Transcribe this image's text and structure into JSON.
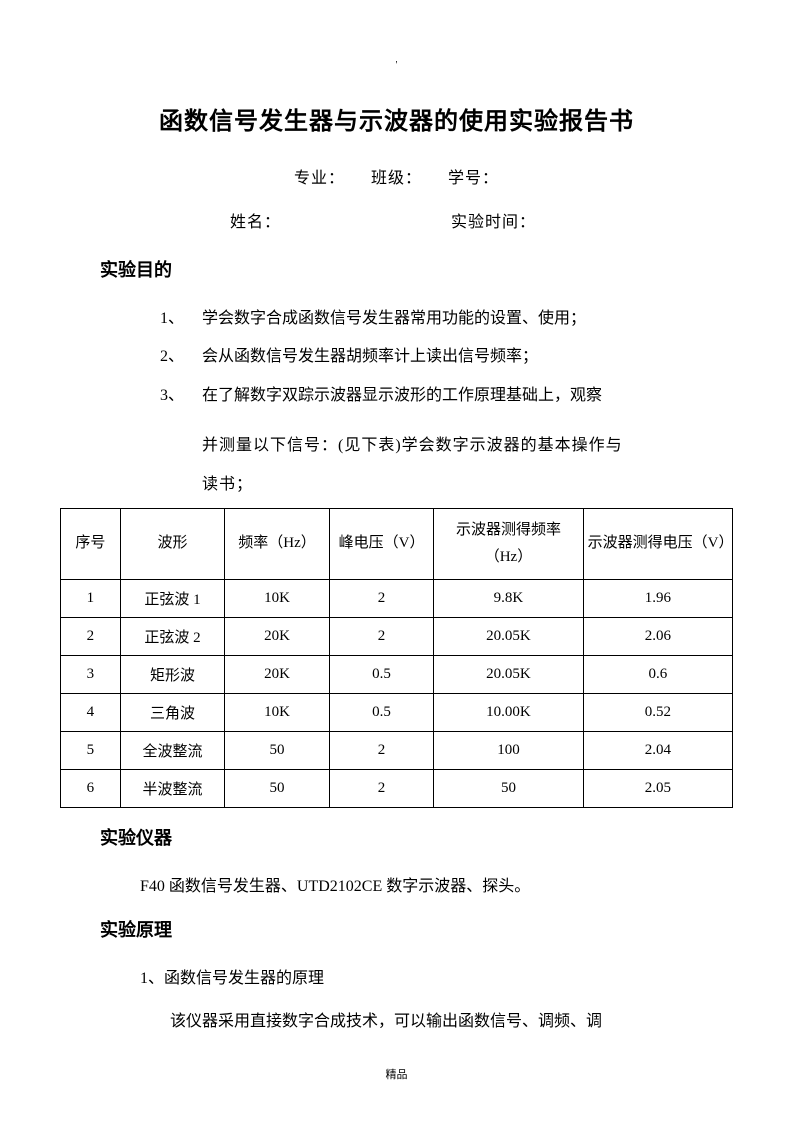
{
  "topDot": "'",
  "title": "函数信号发生器与示波器的使用实验报告书",
  "info": {
    "line1": "专业：　　班级：　　学号：",
    "name_label": "姓名：",
    "time_label": "实验时间："
  },
  "sections": {
    "purpose_heading": "实验目的",
    "instruments_heading": "实验仪器",
    "principle_heading": "实验原理"
  },
  "purpose_items": [
    {
      "num": "1、",
      "text": "学会数字合成函数信号发生器常用功能的设置、使用；"
    },
    {
      "num": "2、",
      "text": " 会从函数信号发生器胡频率计上读出信号频率；"
    },
    {
      "num": "3、",
      "text": "在了解数字双踪示波器显示波形的工作原理基础上，观察"
    }
  ],
  "purpose_cont1": "并测量以下信号：(见下表)学会数字示波器的基本操作与",
  "purpose_cont2": "读书；",
  "table": {
    "columns": [
      "序号",
      "波形",
      "频率（Hz）",
      "峰电压（V）",
      "示波器测得频率（Hz）",
      "示波器测得电压（V）"
    ],
    "rows": [
      [
        "1",
        "正弦波 1",
        "10K",
        "2",
        "9.8K",
        "1.96"
      ],
      [
        "2",
        "正弦波 2",
        "20K",
        "2",
        "20.05K",
        "2.06"
      ],
      [
        "3",
        "矩形波",
        "20K",
        "0.5",
        "20.05K",
        "0.6"
      ],
      [
        "4",
        "三角波",
        "10K",
        "0.5",
        "10.00K",
        "0.52"
      ],
      [
        "5",
        "全波整流",
        "50",
        "2",
        "100",
        "2.04"
      ],
      [
        "6",
        "半波整流",
        "50",
        "2",
        "50",
        "2.05"
      ]
    ]
  },
  "instruments_text": "F40 函数信号发生器、UTD2102CE 数字示波器、探头。",
  "principle_sub": "1、函数信号发生器的原理",
  "principle_body": "该仪器采用直接数字合成技术，可以输出函数信号、调频、调",
  "footer": "精品"
}
